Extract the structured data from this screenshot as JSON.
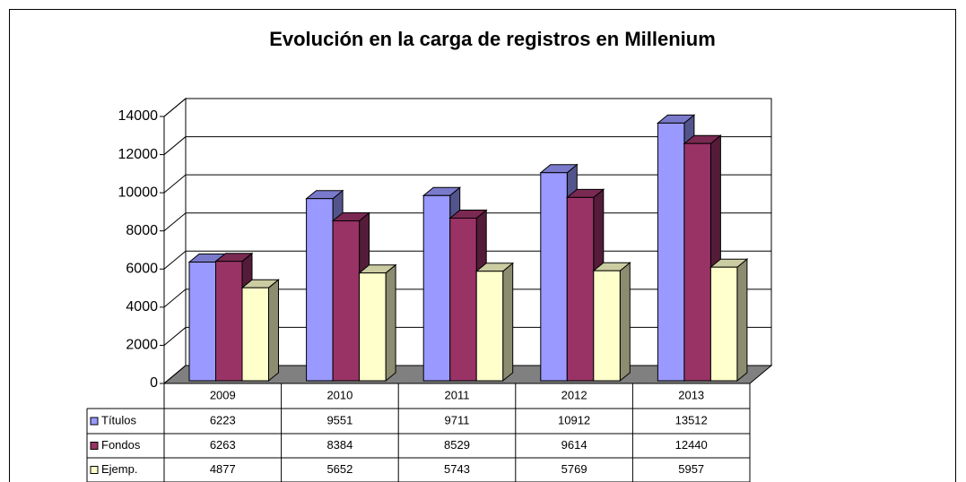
{
  "chart_data": {
    "type": "bar3d",
    "title": "Evolución en la carga de registros en Millenium",
    "categories": [
      "2009",
      "2010",
      "2011",
      "2012",
      "2013"
    ],
    "series": [
      {
        "name": "Títulos",
        "color": "#9999ff",
        "values": [
          6223,
          9551,
          9711,
          10912,
          13512
        ]
      },
      {
        "name": "Fondos",
        "color": "#993366",
        "values": [
          6263,
          8384,
          8529,
          9614,
          12440
        ]
      },
      {
        "name": "Ejemp.",
        "color": "#ffffcc",
        "values": [
          4877,
          5652,
          5743,
          5769,
          5957
        ]
      }
    ],
    "ylim": [
      0,
      14000
    ],
    "yticks": [
      0,
      2000,
      4000,
      6000,
      8000,
      10000,
      12000,
      14000
    ],
    "grid": true,
    "data_table": true
  }
}
